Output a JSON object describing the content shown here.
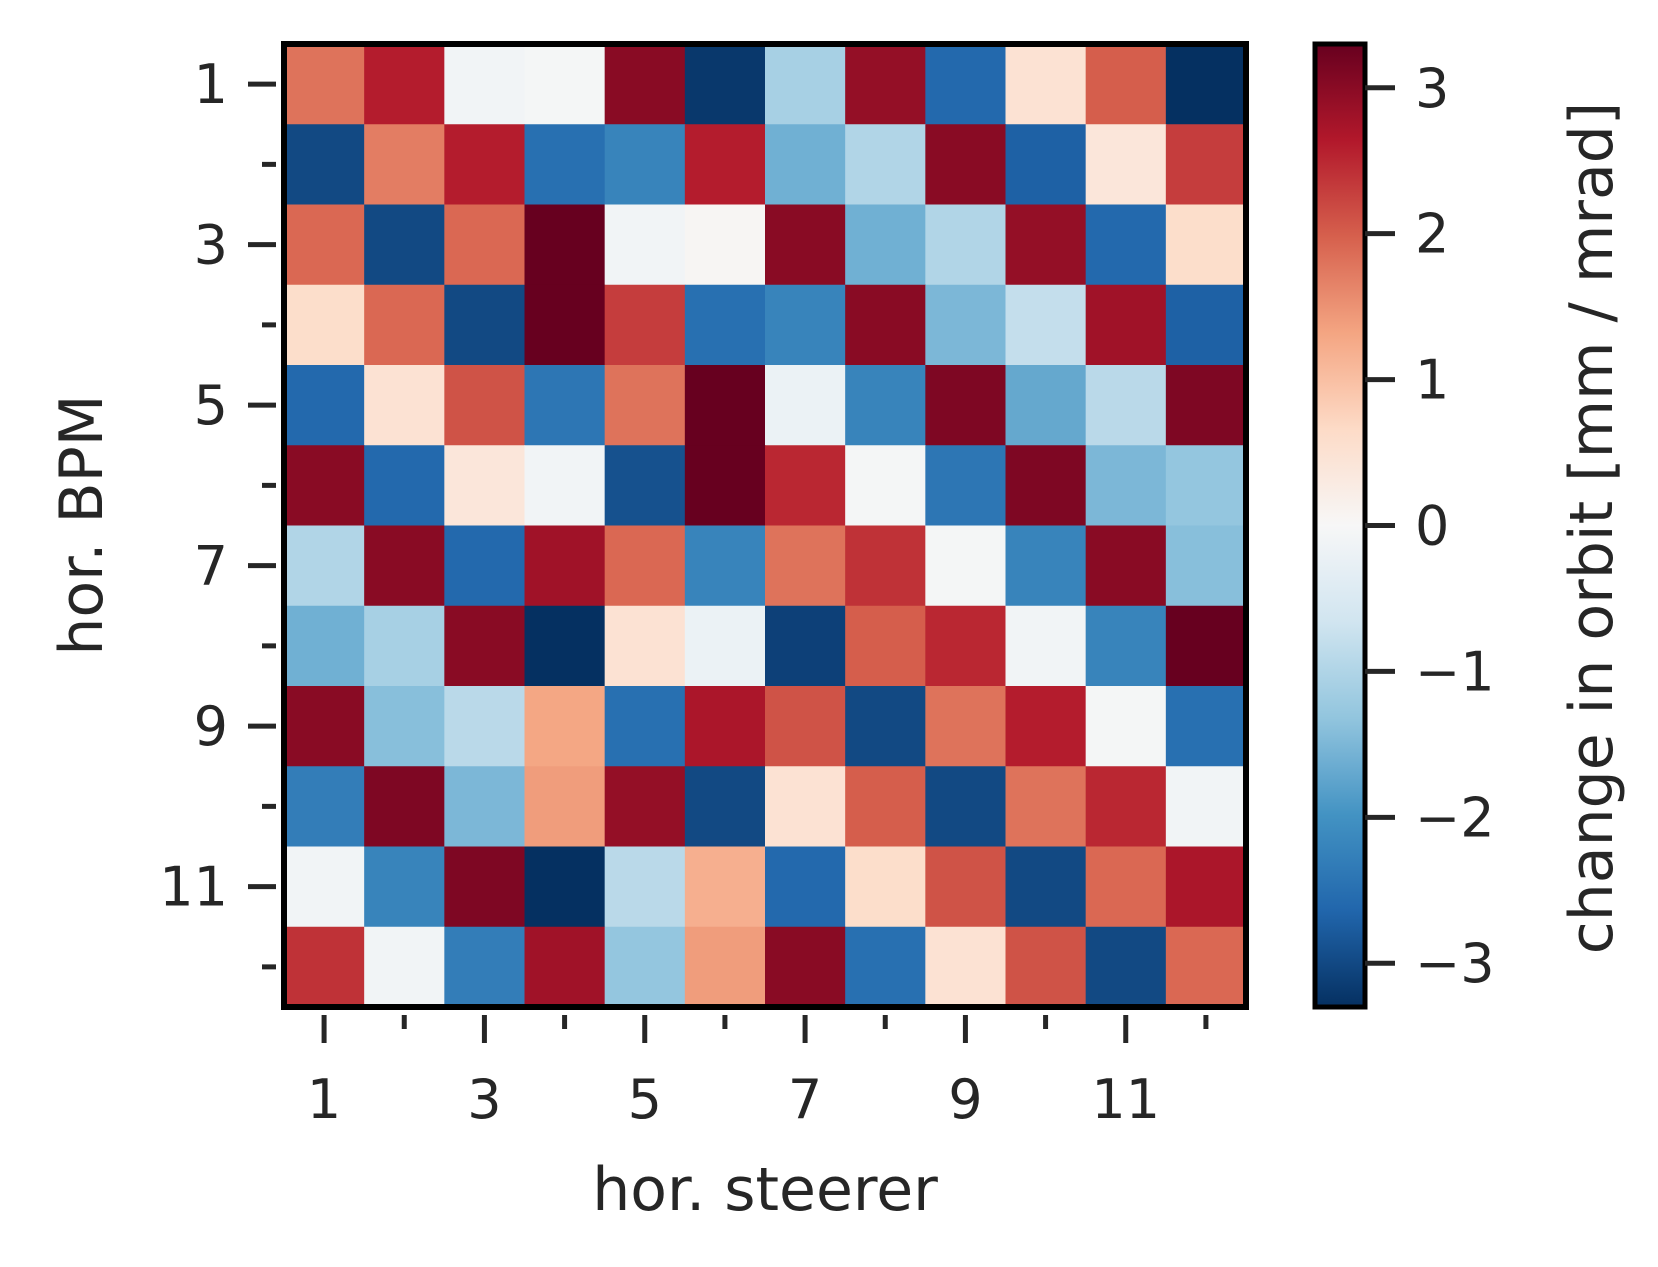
{
  "chart_data": {
    "type": "heatmap",
    "title": "",
    "xlabel": "hor. steerer",
    "ylabel": "hor. BPM",
    "colorbar_label": "change in orbit [mm / mrad]",
    "x_tick_labels": [
      "1",
      "3",
      "5",
      "7",
      "9",
      "11"
    ],
    "x_tick_values": [
      1,
      3,
      5,
      7,
      9,
      11
    ],
    "y_tick_labels": [
      "1",
      "3",
      "5",
      "7",
      "9",
      "11"
    ],
    "y_tick_values": [
      1,
      3,
      5,
      7,
      9,
      11
    ],
    "colorbar_tick_labels": [
      "−3",
      "−2",
      "−1",
      "0",
      "1",
      "2",
      "3"
    ],
    "colorbar_tick_values": [
      -3,
      -2,
      -1,
      0,
      1,
      2,
      3
    ],
    "colormap": "RdBu_r",
    "vmin": -3.3,
    "vmax": 3.3,
    "x_categories": [
      1,
      2,
      3,
      4,
      5,
      6,
      7,
      8,
      9,
      10,
      11,
      12
    ],
    "y_categories": [
      1,
      2,
      3,
      4,
      5,
      6,
      7,
      8,
      9,
      10,
      11,
      12
    ],
    "values": [
      [
        1.8,
        2.6,
        -0.1,
        -0.05,
        3.0,
        -3.2,
        -1.1,
        2.9,
        -2.6,
        0.5,
        2.0,
        -3.3
      ],
      [
        -3.0,
        1.7,
        2.6,
        -2.5,
        -2.2,
        2.6,
        -1.6,
        -1.0,
        3.0,
        -2.7,
        0.4,
        2.3
      ],
      [
        1.9,
        -3.0,
        1.9,
        3.3,
        -0.1,
        0.05,
        3.0,
        -1.6,
        -1.0,
        2.9,
        -2.6,
        0.6
      ],
      [
        0.6,
        1.9,
        -3.0,
        3.3,
        2.3,
        -2.5,
        -2.2,
        3.0,
        -1.5,
        -0.8,
        2.8,
        -2.7
      ],
      [
        -2.6,
        0.5,
        2.1,
        -2.4,
        1.8,
        3.3,
        -0.2,
        -2.2,
        3.1,
        -1.7,
        -0.9,
        3.1
      ],
      [
        3.0,
        -2.6,
        0.4,
        -0.1,
        -2.9,
        3.3,
        2.5,
        -0.05,
        -2.4,
        3.1,
        -1.5,
        -1.3
      ],
      [
        -1.0,
        3.0,
        -2.6,
        2.8,
        1.9,
        -2.2,
        1.8,
        2.4,
        -0.05,
        -2.2,
        3.0,
        -1.4
      ],
      [
        -1.6,
        -1.1,
        3.0,
        -3.3,
        0.5,
        -0.2,
        -3.1,
        2.0,
        2.5,
        -0.1,
        -2.2,
        3.3
      ],
      [
        3.0,
        -1.4,
        -0.9,
        1.3,
        -2.5,
        2.7,
        2.1,
        -3.0,
        1.8,
        2.6,
        -0.05,
        -2.5
      ],
      [
        -2.3,
        3.1,
        -1.5,
        1.4,
        2.9,
        -3.0,
        0.5,
        2.0,
        -3.0,
        1.8,
        2.5,
        -0.1
      ],
      [
        -0.1,
        -2.2,
        3.1,
        -3.3,
        -0.9,
        1.2,
        -2.6,
        0.6,
        2.1,
        -3.0,
        1.9,
        2.7
      ],
      [
        2.4,
        -0.1,
        -2.3,
        2.8,
        -1.3,
        1.4,
        3.0,
        -2.5,
        0.5,
        2.1,
        -3.0,
        1.9
      ]
    ]
  }
}
